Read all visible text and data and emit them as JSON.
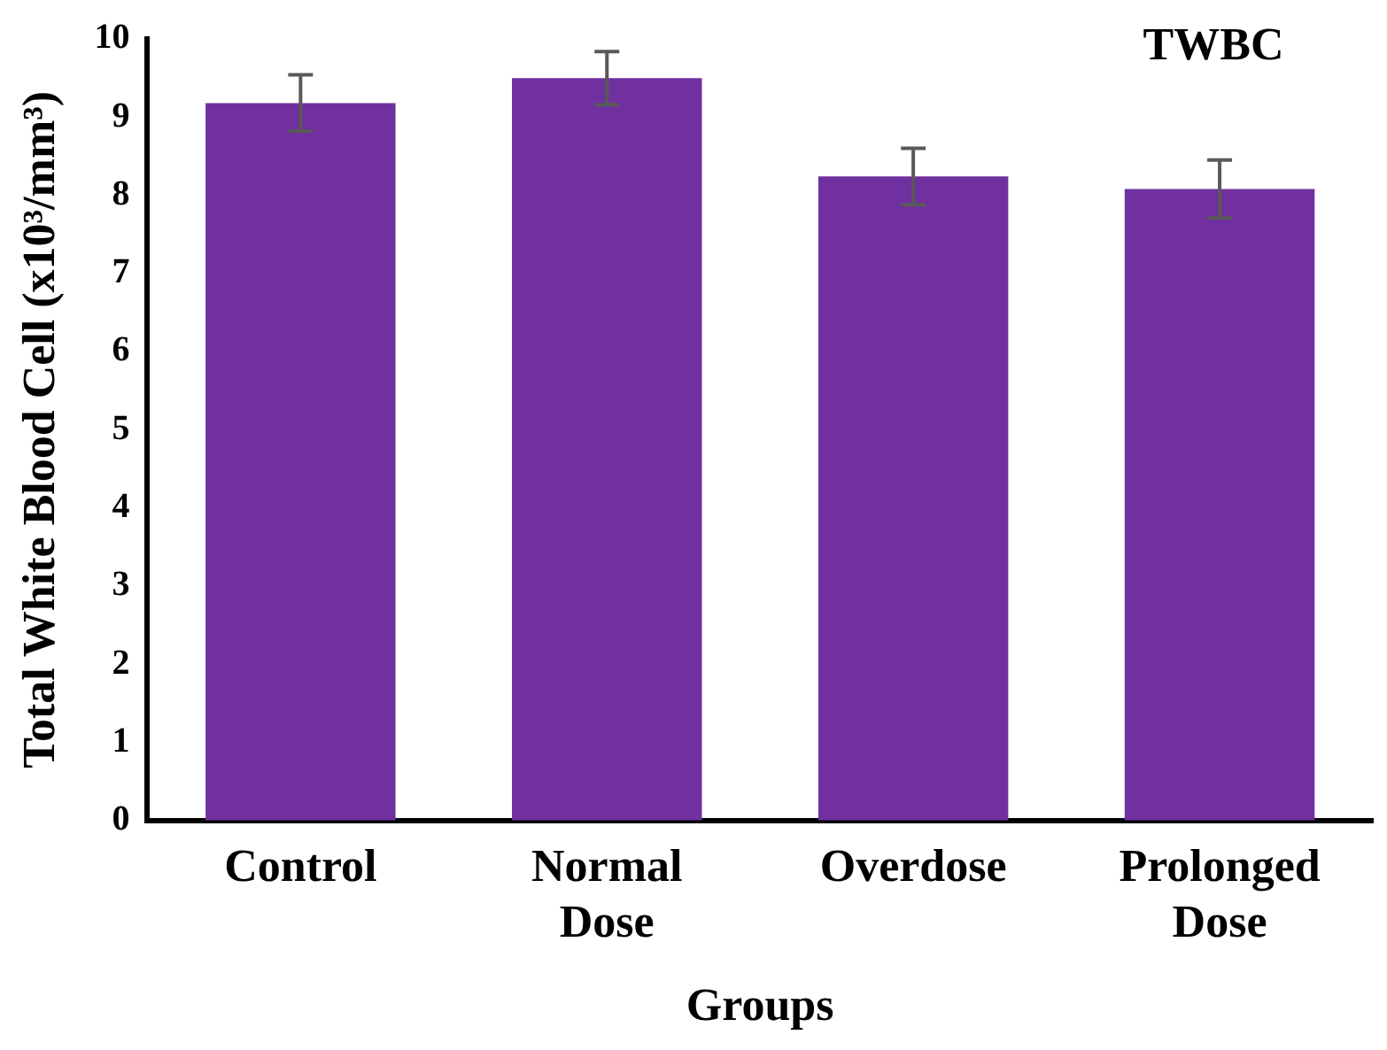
{
  "chart_data": {
    "type": "bar",
    "title": "TWBC",
    "xlabel": "Groups",
    "ylabel": "Total White Blood Cell (x10³/mm³)",
    "categories": [
      "Control",
      "Normal Dose",
      "Overdose",
      "Prolonged Dose"
    ],
    "values": [
      9.18,
      9.5,
      8.24,
      8.08
    ],
    "color": "#7030a0",
    "errors": [
      0.36,
      0.34,
      0.36,
      0.37
    ],
    "ylim": [
      0,
      10
    ],
    "yticks": [
      0,
      1,
      2,
      3,
      4,
      5,
      6,
      7,
      8,
      9,
      10
    ],
    "grid": false,
    "legend": false
  }
}
